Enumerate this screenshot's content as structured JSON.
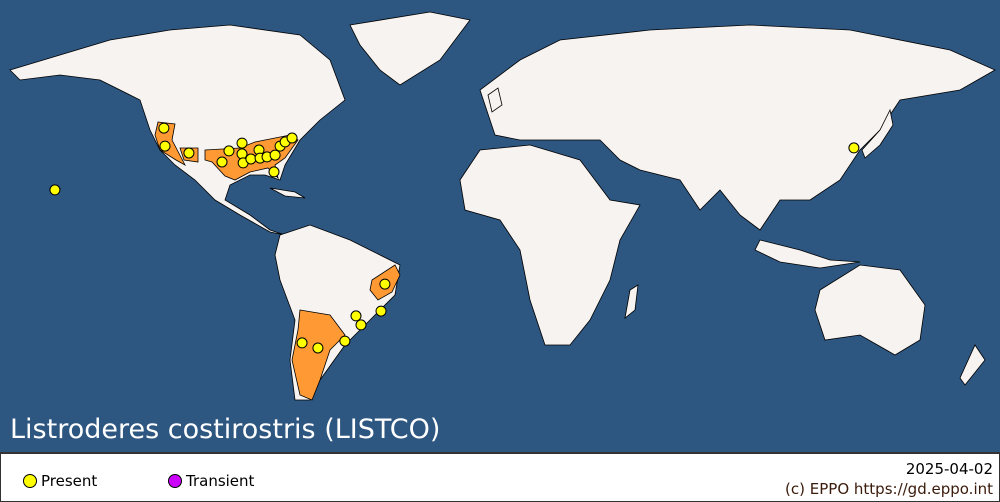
{
  "title": "Listroderes costirostris (LISTCO)",
  "colors": {
    "ocean": "#2d5680",
    "land": "#f6f3f1",
    "present_area": "#ff9933",
    "present": "#ffff00",
    "transient": "#cc00ff",
    "border": "#000000"
  },
  "legend": [
    {
      "label": "Present",
      "color": "#ffff00"
    },
    {
      "label": "Transient",
      "color": "#cc00ff"
    }
  ],
  "date": "2025-04-02",
  "copyright": "(c) EPPO https://gd.eppo.int",
  "locations": [
    {
      "lon": -120.9,
      "lat": 43.3,
      "status": "Present"
    },
    {
      "lon": -120.5,
      "lat": 37.3,
      "status": "Present"
    },
    {
      "lon": -111.9,
      "lat": 35.0,
      "status": "Present"
    },
    {
      "lon": -100.0,
      "lat": 32.0,
      "status": "Present"
    },
    {
      "lon": -97.5,
      "lat": 35.7,
      "status": "Present"
    },
    {
      "lon": -92.8,
      "lat": 38.3,
      "status": "Present"
    },
    {
      "lon": -92.8,
      "lat": 34.7,
      "status": "Present"
    },
    {
      "lon": -92.4,
      "lat": 31.7,
      "status": "Present"
    },
    {
      "lon": -89.6,
      "lat": 33.0,
      "status": "Present"
    },
    {
      "lon": -86.7,
      "lat": 36.0,
      "status": "Present"
    },
    {
      "lon": -86.3,
      "lat": 33.3,
      "status": "Present"
    },
    {
      "lon": -83.8,
      "lat": 33.7,
      "status": "Present"
    },
    {
      "lon": -80.9,
      "lat": 34.3,
      "status": "Present"
    },
    {
      "lon": -79.1,
      "lat": 37.3,
      "status": "Present"
    },
    {
      "lon": -77.3,
      "lat": 38.7,
      "status": "Present"
    },
    {
      "lon": -74.8,
      "lat": 40.0,
      "status": "Present"
    },
    {
      "lon": -81.3,
      "lat": 28.7,
      "status": "Present"
    },
    {
      "lon": -160.1,
      "lat": 22.7,
      "status": "Present"
    },
    {
      "lon": 127.3,
      "lat": 36.7,
      "status": "Present"
    },
    {
      "lon": -41.4,
      "lat": -8.7,
      "status": "Present"
    },
    {
      "lon": -51.8,
      "lat": -19.3,
      "status": "Present"
    },
    {
      "lon": -50.0,
      "lat": -22.3,
      "status": "Present"
    },
    {
      "lon": -42.8,
      "lat": -17.7,
      "status": "Present"
    },
    {
      "lon": -55.8,
      "lat": -27.7,
      "status": "Present"
    },
    {
      "lon": -71.2,
      "lat": -28.3,
      "status": "Present"
    },
    {
      "lon": -65.5,
      "lat": -30.0,
      "status": "Present"
    }
  ]
}
